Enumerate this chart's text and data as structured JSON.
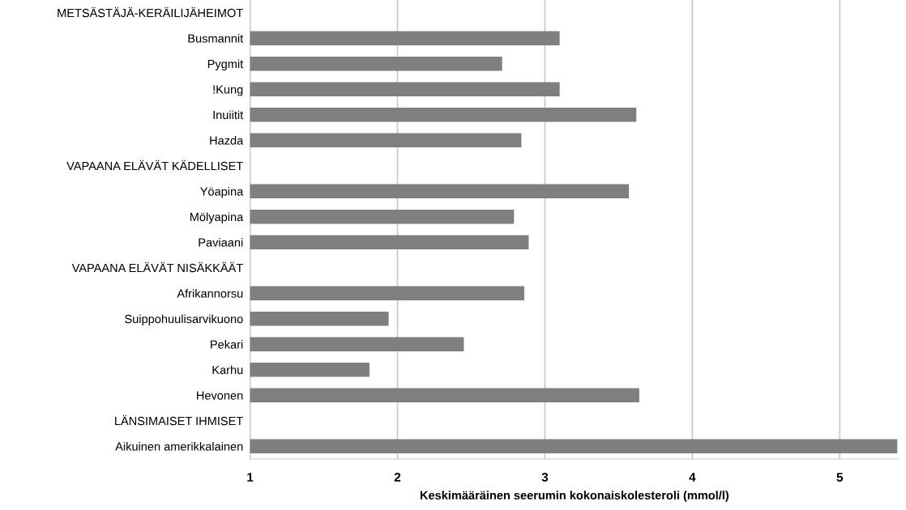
{
  "chart_data": {
    "type": "bar",
    "orientation": "horizontal",
    "xlabel": "Keskimääräinen seerumin kokonaiskolesteroli (mmol/l)",
    "categories": [
      "METSÄSTÄJÄ-KERÄILIJÄHEIMOT",
      "Busmannit",
      "Pygmit",
      "!Kung",
      "Inuiitit",
      "Hazda",
      "VAPAANA ELÄVÄT KÄDELLISET",
      "Yöapina",
      "Mölyapina",
      "Paviaani",
      "VAPAANA ELÄVÄT NISÄKKÄÄT",
      "Afrikannorsu",
      "Suippohuulisarvikuono",
      "Pekari",
      "Karhu",
      "Hevonen",
      "LÄNSIMAISET IHMISET",
      "Aikuinen amerikkalainen"
    ],
    "values": [
      null,
      3.1,
      2.71,
      3.1,
      3.62,
      2.84,
      null,
      3.57,
      2.79,
      2.89,
      null,
      2.86,
      1.94,
      2.45,
      1.81,
      3.64,
      null,
      5.39
    ],
    "color": "#7f7f7f",
    "xlim": [
      1,
      5.4
    ],
    "xticks": [
      1,
      2,
      3,
      4,
      5
    ],
    "grid": "x",
    "legend": false
  }
}
